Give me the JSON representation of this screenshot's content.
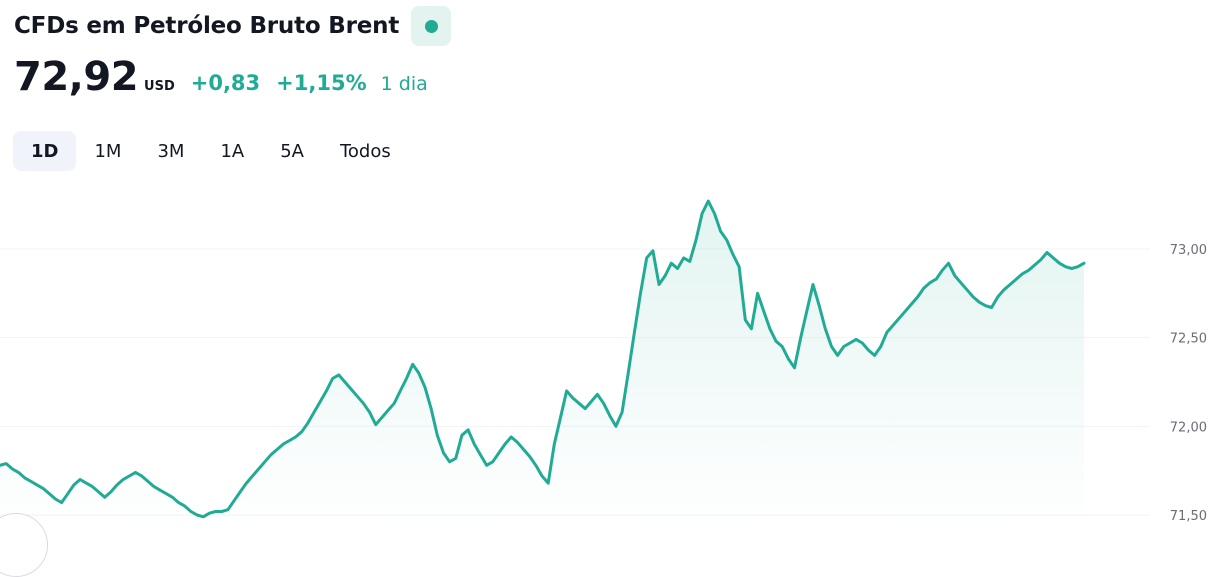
{
  "header": {
    "title": "CFDs em Petróleo Bruto Brent",
    "status_icon": "market-open-dot"
  },
  "quote": {
    "price": "72,92",
    "currency": "USD",
    "change": "+0,83",
    "change_percent": "+1,15%",
    "period": "1 dia"
  },
  "tabs": [
    {
      "label": "1D",
      "active": true
    },
    {
      "label": "1M",
      "active": false
    },
    {
      "label": "3M",
      "active": false
    },
    {
      "label": "1A",
      "active": false
    },
    {
      "label": "5A",
      "active": false
    },
    {
      "label": "Todos",
      "active": false
    }
  ],
  "colors": {
    "line": "#22ab94",
    "accent_text": "#22ab94",
    "status_bg": "#e3f3ef",
    "grid": "#f0f3fa"
  },
  "chart_data": {
    "type": "area",
    "title": "",
    "xlabel": "",
    "ylabel": "",
    "y_ticks": [
      "73,00",
      "72,50",
      "72,00",
      "71,50"
    ],
    "y_tick_values": [
      73.0,
      72.5,
      72.0,
      71.5
    ],
    "ylim": [
      71.45,
      73.3
    ],
    "grid": true,
    "legend": "none",
    "series": [
      {
        "values": [
          71.78,
          71.79,
          71.76,
          71.74,
          71.71,
          71.69,
          71.67,
          71.65,
          71.62,
          71.59,
          71.57,
          71.62,
          71.67,
          71.7,
          71.68,
          71.66,
          71.63,
          71.6,
          71.63,
          71.67,
          71.7,
          71.72,
          71.74,
          71.72,
          71.69,
          71.66,
          71.64,
          71.62,
          71.6,
          71.57,
          71.55,
          71.52,
          71.5,
          71.49,
          71.51,
          71.52,
          71.52,
          71.53,
          71.58,
          71.63,
          71.68,
          71.72,
          71.76,
          71.8,
          71.84,
          71.87,
          71.9,
          71.92,
          71.94,
          71.97,
          72.02,
          72.08,
          72.14,
          72.2,
          72.27,
          72.29,
          72.25,
          72.21,
          72.17,
          72.13,
          72.08,
          72.01,
          72.05,
          72.09,
          72.13,
          72.2,
          72.27,
          72.35,
          72.3,
          72.22,
          72.1,
          71.95,
          71.85,
          71.8,
          71.82,
          71.95,
          71.98,
          71.9,
          71.84,
          71.78,
          71.8,
          71.85,
          71.9,
          71.94,
          71.91,
          71.87,
          71.83,
          71.78,
          71.72,
          71.68,
          71.9,
          72.05,
          72.2,
          72.16,
          72.13,
          72.1,
          72.14,
          72.18,
          72.13,
          72.06,
          72.0,
          72.08,
          72.3,
          72.53,
          72.75,
          72.95,
          72.99,
          72.8,
          72.85,
          72.92,
          72.89,
          72.95,
          72.93,
          73.05,
          73.2,
          73.27,
          73.2,
          73.1,
          73.05,
          72.97,
          72.9,
          72.6,
          72.55,
          72.75,
          72.65,
          72.55,
          72.48,
          72.45,
          72.38,
          72.33,
          72.5,
          72.65,
          72.8,
          72.68,
          72.55,
          72.45,
          72.4,
          72.45,
          72.47,
          72.49,
          72.47,
          72.43,
          72.4,
          72.45,
          72.53,
          72.57,
          72.61,
          72.65,
          72.69,
          72.73,
          72.78,
          72.81,
          72.83,
          72.88,
          72.92,
          72.85,
          72.81,
          72.77,
          72.73,
          72.7,
          72.68,
          72.67,
          72.73,
          72.77,
          72.8,
          72.83,
          72.86,
          72.88,
          72.91,
          72.94,
          72.98,
          72.95,
          72.92,
          72.9,
          72.89,
          72.9,
          72.92
        ]
      }
    ]
  }
}
